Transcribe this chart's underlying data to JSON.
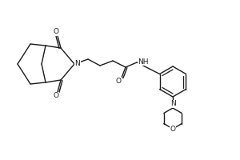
{
  "bg_color": "#ffffff",
  "line_color": "#1a1a1a",
  "line_width": 1.0,
  "font_size": 6.5,
  "figsize": [
    3.0,
    2.0
  ],
  "dpi": 100,
  "xlim": [
    0,
    300
  ],
  "ylim": [
    0,
    200
  ]
}
